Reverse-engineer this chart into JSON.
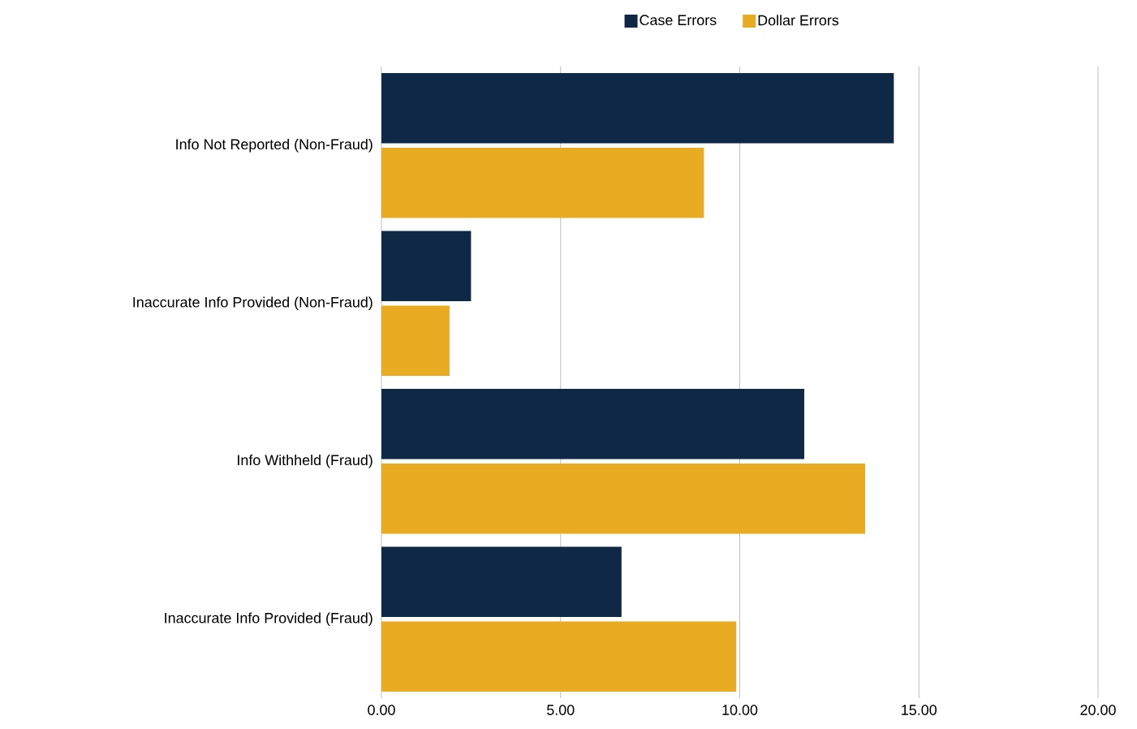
{
  "chart_data": {
    "type": "bar",
    "orientation": "horizontal",
    "categories": [
      "Info Not Reported (Non-Fraud)",
      "Inaccurate Info Provided (Non-Fraud)",
      "Info Withheld (Fraud)",
      "Inaccurate Info Provided (Fraud)"
    ],
    "series": [
      {
        "name": "Case Errors",
        "color": "#0e2846",
        "values": [
          14.3,
          2.5,
          11.8,
          6.7
        ]
      },
      {
        "name": "Dollar Errors",
        "color": "#e8ab22",
        "values": [
          9.0,
          1.9,
          13.5,
          9.9
        ]
      }
    ],
    "xlim": [
      0,
      20
    ],
    "xticks": [
      {
        "value": 0,
        "label": "0.00"
      },
      {
        "value": 5,
        "label": "5.00"
      },
      {
        "value": 10,
        "label": "10.00"
      },
      {
        "value": 15,
        "label": "15.00"
      },
      {
        "value": 20,
        "label": "20.00"
      }
    ],
    "grid": "x",
    "legend": "top"
  }
}
